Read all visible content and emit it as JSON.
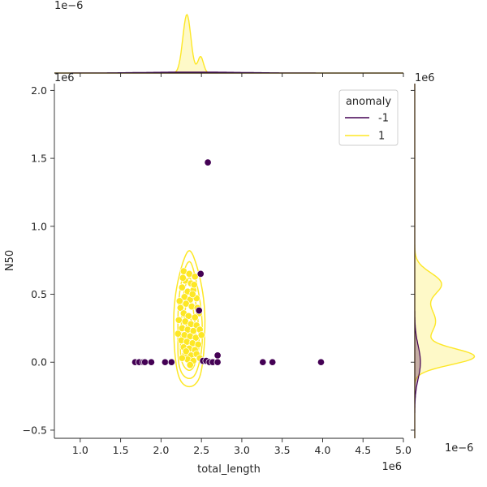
{
  "chart_data": {
    "type": "scatter",
    "subtype": "joint-plot with KDE contours and marginal density plots",
    "xlabel": "total_length",
    "ylabel": "N50",
    "x_offset_label": "1e6",
    "y_offset_label": "1e6",
    "top_marginal_offset_label": "1e−6",
    "right_marginal_offset_label": "1e−6",
    "x_scale_factor": "1e6",
    "y_scale_factor": "1e6",
    "xlim": [
      0.68,
      5.0
    ],
    "ylim": [
      -0.56,
      2.05
    ],
    "x_ticks": [
      {
        "value": 1.0,
        "label": "1.0"
      },
      {
        "value": 1.5,
        "label": "1.5"
      },
      {
        "value": 2.0,
        "label": "2.0"
      },
      {
        "value": 2.5,
        "label": "2.5"
      },
      {
        "value": 3.0,
        "label": "3.0"
      },
      {
        "value": 3.5,
        "label": "3.5"
      },
      {
        "value": 4.0,
        "label": "4.0"
      },
      {
        "value": 4.5,
        "label": "4.5"
      },
      {
        "value": 5.0,
        "label": "5.0"
      }
    ],
    "y_ticks": [
      {
        "value": -0.5,
        "label": "−0.5"
      },
      {
        "value": 0.0,
        "label": "0.0"
      },
      {
        "value": 0.5,
        "label": "0.5"
      },
      {
        "value": 1.0,
        "label": "1.0"
      },
      {
        "value": 1.5,
        "label": "1.5"
      },
      {
        "value": 2.0,
        "label": "2.0"
      }
    ],
    "legend": {
      "title": "anomaly",
      "placement": "top-right",
      "entries": [
        {
          "label": "-1",
          "color": "#440154"
        },
        {
          "label": "1",
          "color": "#fde725"
        }
      ]
    },
    "grid": false,
    "series": [
      {
        "name": "-1",
        "color": "#440154",
        "points": [
          [
            2.58,
            1.47
          ],
          [
            2.49,
            0.65
          ],
          [
            2.47,
            0.38
          ],
          [
            2.7,
            0.05
          ],
          [
            1.68,
            0.0
          ],
          [
            1.73,
            0.0
          ],
          [
            1.78,
            0.0
          ],
          [
            1.8,
            0.0
          ],
          [
            1.88,
            0.0
          ],
          [
            2.05,
            0.0
          ],
          [
            2.13,
            0.0
          ],
          [
            2.52,
            0.01
          ],
          [
            2.56,
            0.01
          ],
          [
            2.6,
            0.0
          ],
          [
            2.64,
            0.0
          ],
          [
            2.7,
            0.0
          ],
          [
            3.26,
            0.0
          ],
          [
            3.38,
            0.0
          ],
          [
            3.98,
            0.0
          ]
        ]
      },
      {
        "name": "1",
        "color": "#fde725",
        "points": [
          [
            2.28,
            0.67
          ],
          [
            2.35,
            0.65
          ],
          [
            2.42,
            0.63
          ],
          [
            2.3,
            0.6
          ],
          [
            2.37,
            0.58
          ],
          [
            2.26,
            0.55
          ],
          [
            2.33,
            0.52
          ],
          [
            2.4,
            0.53
          ],
          [
            2.29,
            0.48
          ],
          [
            2.36,
            0.46
          ],
          [
            2.44,
            0.47
          ],
          [
            2.31,
            0.43
          ],
          [
            2.24,
            0.4
          ],
          [
            2.38,
            0.41
          ],
          [
            2.47,
            0.36
          ],
          [
            2.28,
            0.36
          ],
          [
            2.34,
            0.34
          ],
          [
            2.42,
            0.33
          ],
          [
            2.22,
            0.31
          ],
          [
            2.3,
            0.3
          ],
          [
            2.37,
            0.28
          ],
          [
            2.44,
            0.27
          ],
          [
            2.26,
            0.25
          ],
          [
            2.33,
            0.24
          ],
          [
            2.4,
            0.23
          ],
          [
            2.48,
            0.24
          ],
          [
            2.21,
            0.21
          ],
          [
            2.29,
            0.2
          ],
          [
            2.36,
            0.19
          ],
          [
            2.43,
            0.18
          ],
          [
            2.5,
            0.2
          ],
          [
            2.25,
            0.16
          ],
          [
            2.32,
            0.15
          ],
          [
            2.39,
            0.14
          ],
          [
            2.46,
            0.13
          ],
          [
            2.28,
            0.11
          ],
          [
            2.35,
            0.1
          ],
          [
            2.42,
            0.09
          ],
          [
            2.3,
            0.06
          ],
          [
            2.37,
            0.05
          ],
          [
            2.44,
            0.06
          ],
          [
            2.33,
            0.02
          ],
          [
            2.4,
            0.01
          ],
          [
            2.26,
            0.03
          ],
          [
            2.48,
            0.03
          ],
          [
            2.36,
            -0.02
          ],
          [
            2.31,
            0.08
          ],
          [
            2.45,
            0.4
          ],
          [
            2.23,
            0.45
          ],
          [
            2.39,
            0.5
          ],
          [
            2.27,
            0.62
          ],
          [
            2.41,
            0.57
          ]
        ]
      }
    ],
    "kde_contours_class_1": {
      "center": [
        2.35,
        0.2
      ],
      "levels": [
        {
          "x_halfwidth": 0.19,
          "y_top": 0.82,
          "y_bottom": -0.18
        },
        {
          "x_halfwidth": 0.15,
          "y_top": 0.74,
          "y_bottom": -0.12
        },
        {
          "x_halfwidth": 0.11,
          "y_top": 0.62,
          "y_bottom": -0.06
        },
        {
          "x_halfwidth": 0.08,
          "y_top": 0.48,
          "y_bottom": -0.01
        },
        {
          "x_halfwidth": 0.05,
          "y_top": 0.33,
          "y_bottom": 0.04
        }
      ]
    },
    "marginal_x": {
      "class_1_components": [
        {
          "mean": 2.32,
          "sd": 0.05,
          "weight": 1.0
        },
        {
          "mean": 2.49,
          "sd": 0.035,
          "weight": 0.28
        }
      ],
      "class_minus1_components": [
        {
          "mean": 2.4,
          "sd": 0.6,
          "weight": 1.0
        }
      ]
    },
    "marginal_y": {
      "class_1_components": [
        {
          "mean": 0.04,
          "sd": 0.06,
          "weight": 1.0
        },
        {
          "mean": 0.3,
          "sd": 0.12,
          "weight": 0.36
        },
        {
          "mean": 0.58,
          "sd": 0.08,
          "weight": 0.44
        }
      ],
      "class_minus1_components": [
        {
          "mean": 0.0,
          "sd": 0.12,
          "weight": 1.0
        }
      ]
    }
  }
}
